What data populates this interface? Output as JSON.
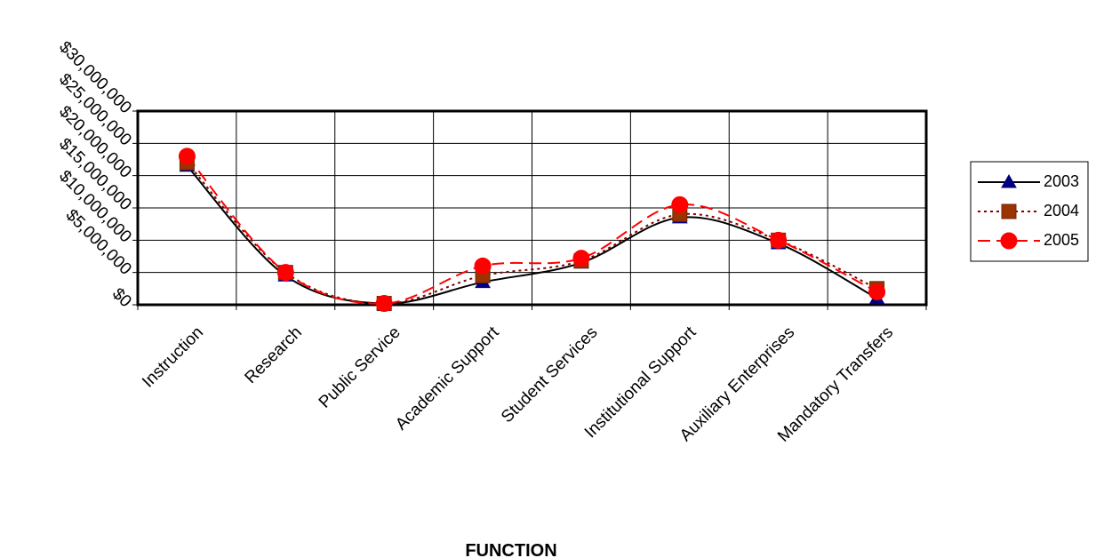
{
  "chart_data": {
    "type": "line",
    "title": "",
    "xlabel": "FUNCTION",
    "ylabel": "",
    "categories": [
      "Instruction",
      "Research",
      "Public Service",
      "Academic Support",
      "Student Services",
      "Institutional Support",
      "Auxiliary Enterprises",
      "Mandatory Transfers"
    ],
    "y_ticks": [
      "$0",
      "$5,000,000",
      "$10,000,000",
      "$15,000,000",
      "$20,000,000",
      "$25,000,000",
      "$30,000,000"
    ],
    "ylim": [
      0,
      30000000
    ],
    "grid": true,
    "legend": "right",
    "series": [
      {
        "name": "2003",
        "color": "#000000",
        "marker": "triangle",
        "marker_color": "#000080",
        "line_style": "solid",
        "values": [
          21500000,
          4500000,
          200000,
          3500000,
          6500000,
          13500000,
          9500000,
          1000000
        ]
      },
      {
        "name": "2004",
        "color": "#800000",
        "marker": "square",
        "marker_color": "#993300",
        "line_style": "dotted",
        "values": [
          22000000,
          5000000,
          200000,
          4500000,
          6800000,
          14000000,
          10000000,
          2500000
        ]
      },
      {
        "name": "2005",
        "color": "#ff0000",
        "marker": "circle",
        "marker_color": "#ff0000",
        "line_style": "dashed",
        "values": [
          23000000,
          5000000,
          200000,
          6000000,
          7200000,
          15500000,
          10000000,
          2000000
        ]
      }
    ]
  }
}
